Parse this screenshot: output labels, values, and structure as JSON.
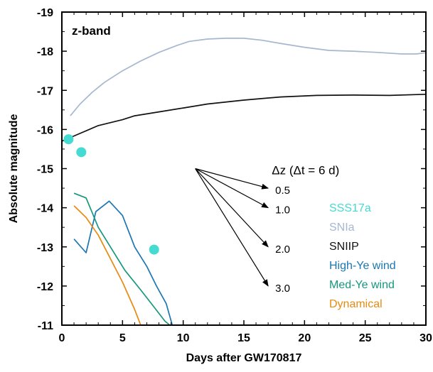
{
  "chart_data": {
    "type": "line",
    "panel_label": "z-band",
    "xlabel": "Days after GW170817",
    "ylabel": "Absolute magnitude",
    "xlim": [
      0,
      30
    ],
    "ylim": [
      -19,
      -11
    ],
    "y_inverted": true,
    "x_ticks": [
      0,
      5,
      10,
      15,
      20,
      25,
      30
    ],
    "y_ticks": [
      -19,
      -18,
      -17,
      -16,
      -15,
      -14,
      -13,
      -12,
      -11
    ],
    "grid": false,
    "series": [
      {
        "name": "SNIa",
        "color": "#a7b7cf",
        "kind": "line",
        "x": [
          0.7,
          1.5,
          2.5,
          3.5,
          5,
          6.5,
          8,
          9.5,
          10.5,
          12,
          13.5,
          15,
          16.5,
          18,
          20,
          22,
          24,
          26,
          28,
          29.2,
          30
        ],
        "y": [
          -16.35,
          -16.65,
          -16.95,
          -17.2,
          -17.5,
          -17.75,
          -17.97,
          -18.15,
          -18.25,
          -18.31,
          -18.33,
          -18.33,
          -18.28,
          -18.2,
          -18.1,
          -18.02,
          -18.0,
          -17.97,
          -17.93,
          -17.93,
          -17.96
        ]
      },
      {
        "name": "SNIIP",
        "color": "#111111",
        "kind": "line",
        "x": [
          0,
          1.5,
          3,
          5,
          6,
          8,
          10,
          12,
          15,
          18,
          21,
          24,
          27,
          30
        ],
        "y": [
          -15.7,
          -15.9,
          -16.1,
          -16.25,
          -16.35,
          -16.45,
          -16.55,
          -16.65,
          -16.75,
          -16.83,
          -16.87,
          -16.88,
          -16.87,
          -16.9
        ]
      },
      {
        "name": "High-Ye wind",
        "color": "#1b77b3",
        "kind": "line",
        "x": [
          1,
          2,
          2.8,
          3.9,
          5,
          6,
          7,
          7.8,
          8.6,
          9.1
        ],
        "y": [
          -13.2,
          -12.85,
          -13.9,
          -14.17,
          -13.8,
          -13.0,
          -12.5,
          -12.0,
          -11.55,
          -11.0
        ]
      },
      {
        "name": "Med-Ye wind",
        "color": "#17987d",
        "kind": "line",
        "x": [
          1,
          2,
          3,
          4,
          5.2,
          6.5,
          7.5,
          8.5,
          8.9
        ],
        "y": [
          -14.37,
          -14.25,
          -13.5,
          -13.0,
          -12.4,
          -11.9,
          -11.5,
          -11.1,
          -11.0
        ]
      },
      {
        "name": "Dynamical",
        "color": "#e88a12",
        "kind": "line",
        "x": [
          1,
          2,
          3,
          4,
          5,
          6,
          6.5
        ],
        "y": [
          -14.05,
          -13.75,
          -13.3,
          -12.7,
          -12.1,
          -11.4,
          -11.0
        ]
      },
      {
        "name": "SSS17a",
        "color": "#45dad2",
        "kind": "scatter",
        "x": [
          0.55,
          1.6,
          7.6
        ],
        "y": [
          -15.75,
          -15.42,
          -12.93
        ]
      }
    ],
    "legend": {
      "placement": "bottom-right",
      "entries": [
        {
          "label": "SSS17a",
          "color": "#45dad2"
        },
        {
          "label": "SNIa",
          "color": "#a7b7cf"
        },
        {
          "label": "SNIIP",
          "color": "#111111"
        },
        {
          "label": "High-Ye wind",
          "color": "#1b77b3"
        },
        {
          "label": "Med-Ye wind",
          "color": "#17987d"
        },
        {
          "label": "Dynamical",
          "color": "#e88a12"
        }
      ]
    },
    "arrow_annotation": {
      "title": "Δz (Δt = 6 d)",
      "origin": [
        11,
        -15.0
      ],
      "arrows": [
        {
          "label": "0.5",
          "dz": 0.5
        },
        {
          "label": "1.0",
          "dz": 1.0
        },
        {
          "label": "2.0",
          "dz": 2.0
        },
        {
          "label": "3.0",
          "dz": 3.0
        }
      ]
    }
  }
}
